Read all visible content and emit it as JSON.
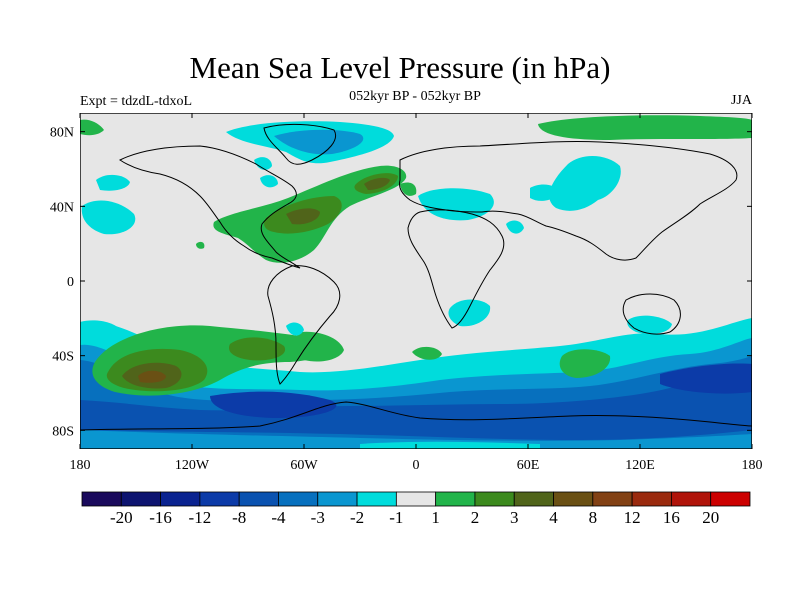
{
  "title": "Mean Sea Level Pressure (in hPa)",
  "subtitle": "052kyr BP - 052kyr BP",
  "left_label": "Expt = tdzdL-tdxoL",
  "right_label": "JJA",
  "map": {
    "lon_range": [
      -180,
      180
    ],
    "lat_range": [
      -90,
      90
    ],
    "xticks": [
      {
        "lon": -180,
        "label": "180"
      },
      {
        "lon": -120,
        "label": "120W"
      },
      {
        "lon": -60,
        "label": "60W"
      },
      {
        "lon": 0,
        "label": "0"
      },
      {
        "lon": 60,
        "label": "60E"
      },
      {
        "lon": 120,
        "label": "120E"
      },
      {
        "lon": 180,
        "label": "180"
      }
    ],
    "yticks": [
      {
        "lat": 80,
        "label": "80N"
      },
      {
        "lat": 40,
        "label": "40N"
      },
      {
        "lat": 0,
        "label": "0"
      },
      {
        "lat": -40,
        "label": "40S"
      },
      {
        "lat": -80,
        "label": "80S"
      }
    ],
    "background_color": "#e6e6e6"
  },
  "colorbar": {
    "colors": [
      "#1a0a5c",
      "#0d1470",
      "#0a2390",
      "#0c3ba8",
      "#0a52b0",
      "#0770be",
      "#0a96d0",
      "#00dcdc",
      "#e6e6e6",
      "#22b44a",
      "#3c8a1e",
      "#50641a",
      "#6a5014",
      "#824114",
      "#9a2a0e",
      "#b0140a",
      "#cc0000"
    ],
    "labels": [
      "-20",
      "-16",
      "-12",
      "-8",
      "-4",
      "-3",
      "-2",
      "-1",
      "1",
      "2",
      "3",
      "4",
      "8",
      "12",
      "16",
      "20"
    ]
  }
}
